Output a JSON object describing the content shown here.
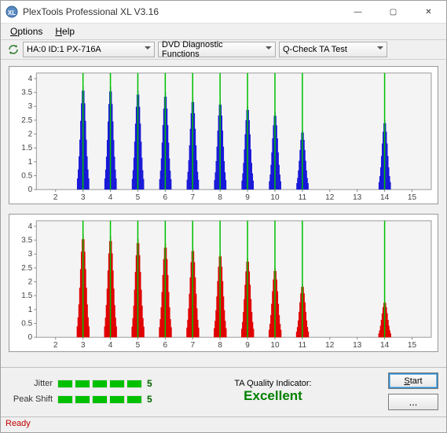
{
  "window": {
    "title": "PlexTools Professional XL V3.16",
    "menu": {
      "options": "Options",
      "help": "Help"
    },
    "buttons": {
      "min": "—",
      "max": "▢",
      "close": "✕"
    }
  },
  "toolbar": {
    "device": "HA:0 ID:1  PX-716A",
    "functions": "DVD Diagnostic Functions",
    "test": "Q-Check TA Test"
  },
  "chart_top": {
    "type": "bar-cluster",
    "color": "#1818d8",
    "plot_bg": "#f4f4f4",
    "axis_color": "#888888",
    "font_size": 10,
    "xlim": [
      1.3,
      15.7
    ],
    "ylim": [
      0,
      4.2
    ],
    "xticks": [
      2,
      3,
      4,
      5,
      6,
      7,
      8,
      9,
      10,
      11,
      12,
      13,
      14,
      15
    ],
    "yticks": [
      0,
      0.5,
      1,
      1.5,
      2,
      2.5,
      3,
      3.5,
      4
    ],
    "markers_x": [
      3,
      4,
      5,
      6,
      7,
      8,
      9,
      10,
      11,
      14
    ],
    "marker_color": "#00c000",
    "peaks": [
      {
        "c": 3,
        "h": 3.73
      },
      {
        "c": 4,
        "h": 3.7
      },
      {
        "c": 5,
        "h": 3.58
      },
      {
        "c": 6,
        "h": 3.5
      },
      {
        "c": 7,
        "h": 3.3
      },
      {
        "c": 8,
        "h": 3.2
      },
      {
        "c": 9,
        "h": 3.0
      },
      {
        "c": 10,
        "h": 2.78
      },
      {
        "c": 11,
        "h": 2.15
      },
      {
        "c": 14,
        "h": 2.5
      }
    ],
    "spread": 0.44
  },
  "chart_bottom": {
    "type": "bar-cluster",
    "color": "#e00000",
    "plot_bg": "#f4f4f4",
    "axis_color": "#888888",
    "font_size": 10,
    "xlim": [
      1.3,
      15.7
    ],
    "ylim": [
      0,
      4.2
    ],
    "xticks": [
      2,
      3,
      4,
      5,
      6,
      7,
      8,
      9,
      10,
      11,
      12,
      13,
      14,
      15
    ],
    "yticks": [
      0,
      0.5,
      1,
      1.5,
      2,
      2.5,
      3,
      3.5,
      4
    ],
    "markers_x": [
      3,
      4,
      5,
      6,
      7,
      8,
      9,
      10,
      11,
      14
    ],
    "marker_color": "#00c000",
    "peaks": [
      {
        "c": 3,
        "h": 3.7
      },
      {
        "c": 4,
        "h": 3.63
      },
      {
        "c": 5,
        "h": 3.55
      },
      {
        "c": 6,
        "h": 3.38
      },
      {
        "c": 7,
        "h": 3.25
      },
      {
        "c": 8,
        "h": 3.05
      },
      {
        "c": 9,
        "h": 2.85
      },
      {
        "c": 10,
        "h": 2.5
      },
      {
        "c": 11,
        "h": 1.9
      },
      {
        "c": 14,
        "h": 1.3
      }
    ],
    "spread": 0.46
  },
  "status": {
    "jitter": {
      "label": "Jitter",
      "bars": 5,
      "value": "5"
    },
    "peakshift": {
      "label": "Peak Shift",
      "bars": 5,
      "value": "5"
    },
    "ta_label": "TA Quality Indicator:",
    "ta_value": "Excellent",
    "start_label": "Start",
    "more_label": "..."
  },
  "statusbar": {
    "text": "Ready"
  }
}
